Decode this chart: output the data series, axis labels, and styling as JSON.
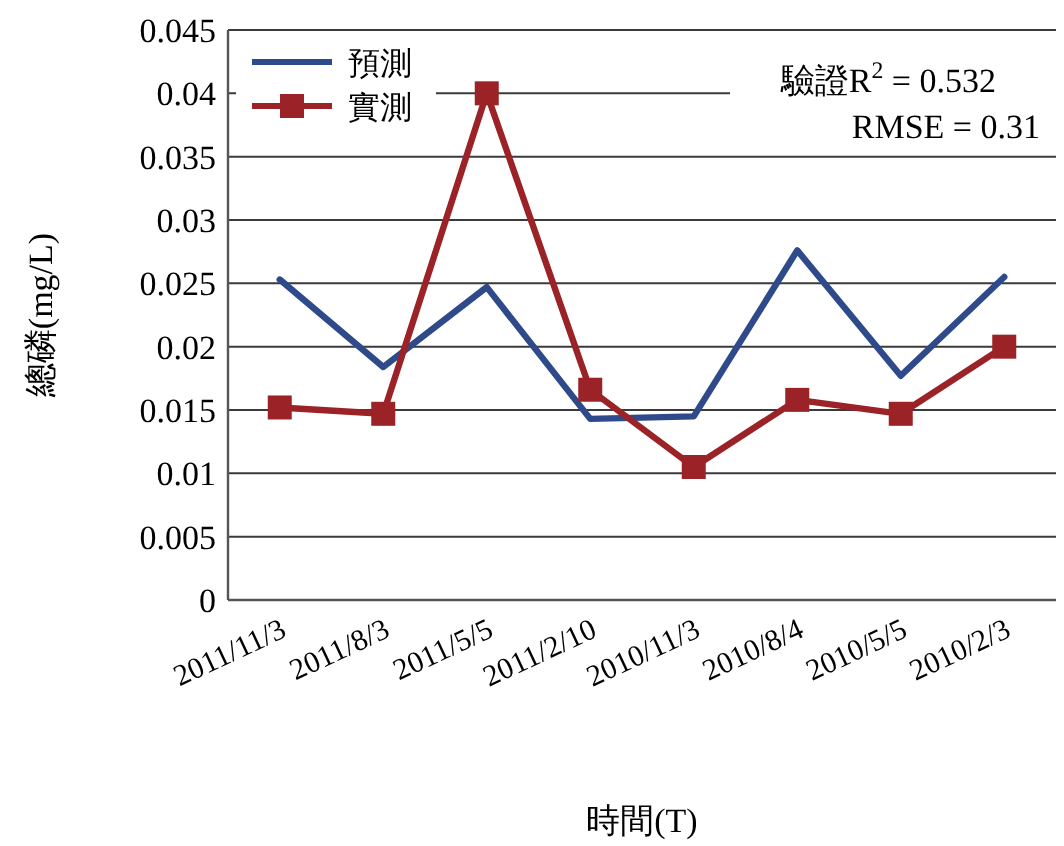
{
  "chart_data": {
    "type": "line",
    "xlabel": "時間(T)",
    "ylabel": "總磷(mg/L)",
    "categories": [
      "2011/11/3",
      "2011/8/3",
      "2011/5/5",
      "2011/2/10",
      "2010/11/3",
      "2010/8/4",
      "2010/5/5",
      "2010/2/3"
    ],
    "series": [
      {
        "name": "預測",
        "color": "#2e4a8a",
        "marker": "none",
        "values": [
          0.0253,
          0.0184,
          0.0247,
          0.0143,
          0.0145,
          0.0276,
          0.0177,
          0.0255
        ]
      },
      {
        "name": "實測",
        "color": "#9b2226",
        "marker": "square",
        "values": [
          0.0152,
          0.0147,
          0.04,
          0.0166,
          0.0105,
          0.0158,
          0.0147,
          0.02
        ]
      }
    ],
    "ylim": [
      0,
      0.045
    ],
    "yticks": [
      0,
      0.005,
      0.01,
      0.015,
      0.02,
      0.025,
      0.03,
      0.035,
      0.04,
      0.045
    ],
    "grid": "y",
    "legend": "top left",
    "line_style": "solid",
    "annotations": [
      "驗證R$^{2}$ = 0.532",
      "RMSE = 0.31"
    ]
  }
}
